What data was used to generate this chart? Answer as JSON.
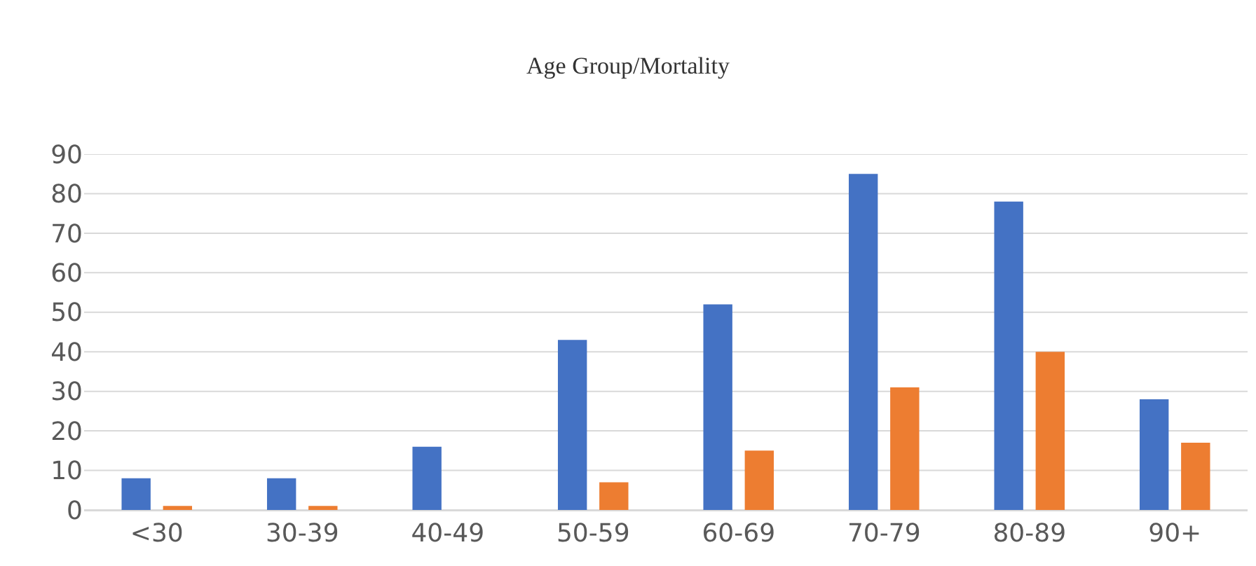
{
  "chart_data": {
    "type": "bar",
    "title": "Age Group/Mortality",
    "categories": [
      "<30",
      "30-39",
      "40-49",
      "50-59",
      "60-69",
      "70-79",
      "80-89",
      "90+"
    ],
    "series": [
      {
        "color": "#4472c4",
        "values": [
          8,
          8,
          16,
          43,
          52,
          85,
          78,
          28
        ]
      },
      {
        "color": "#ed7d31",
        "values": [
          1,
          1,
          0,
          7,
          15,
          31,
          40,
          17
        ]
      }
    ],
    "ylim": [
      0,
      90
    ],
    "yticks": [
      0,
      10,
      20,
      30,
      40,
      50,
      60,
      70,
      80,
      90
    ],
    "grid": "y"
  }
}
